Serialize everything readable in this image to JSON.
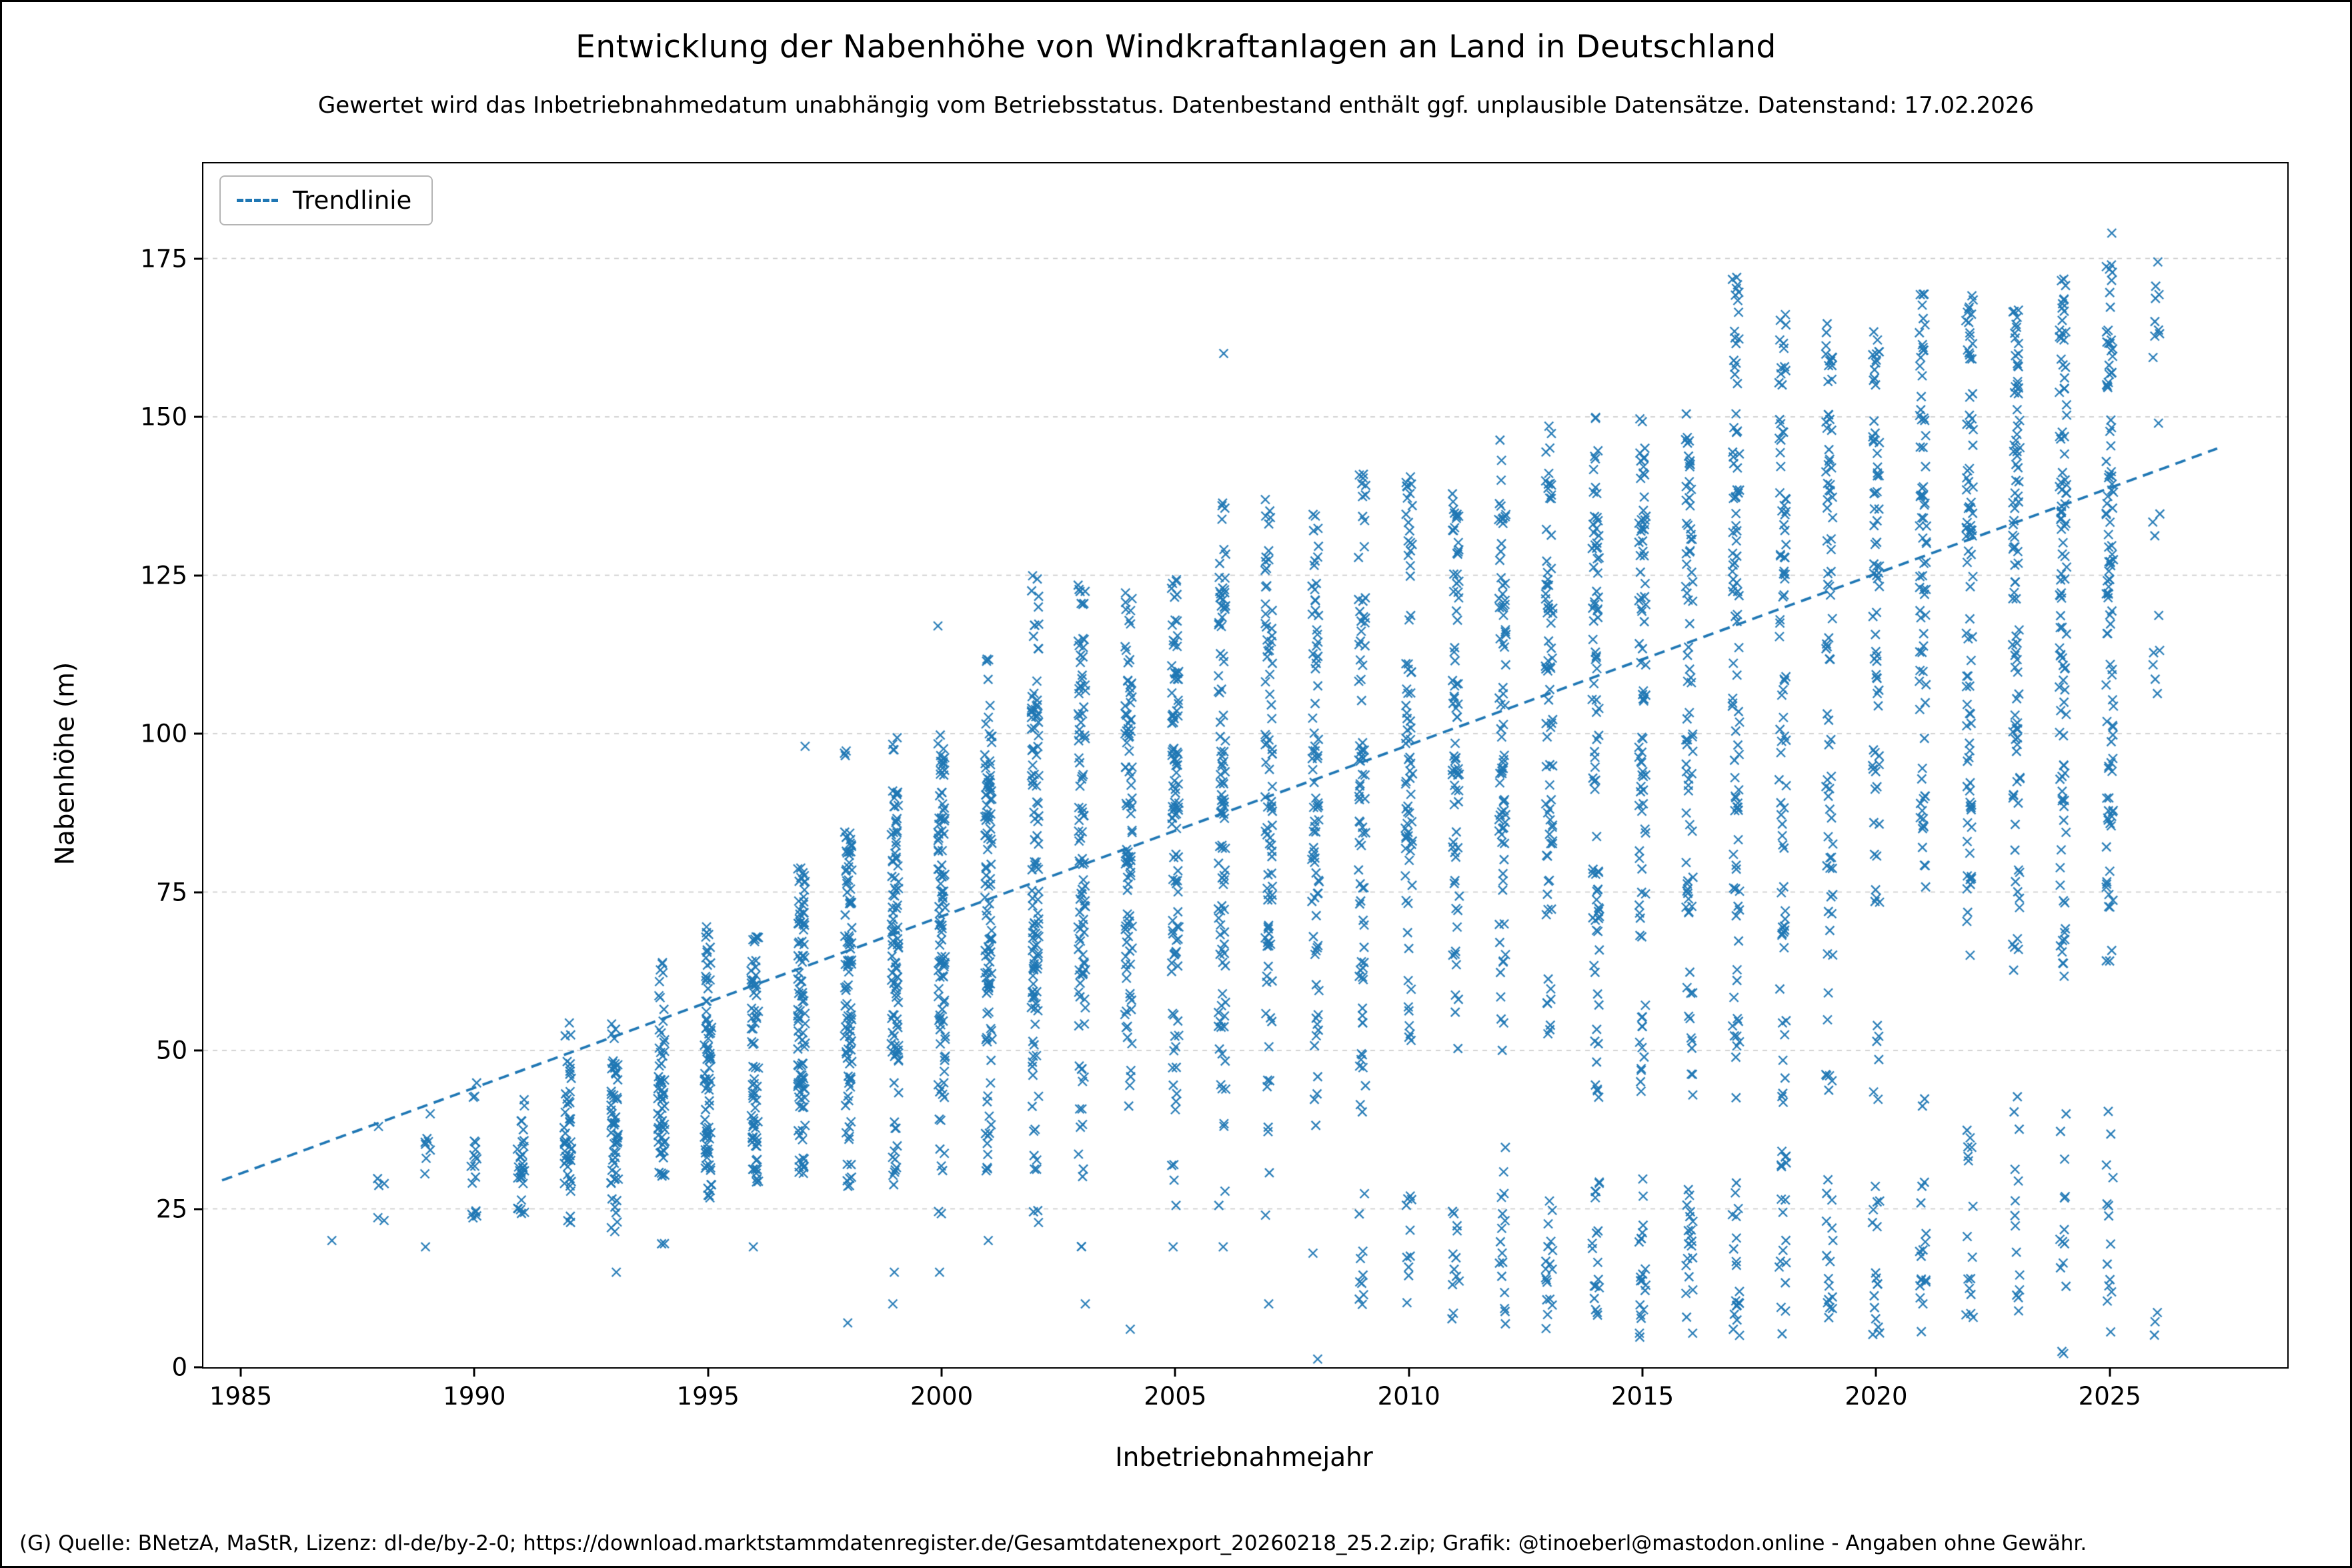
{
  "chart_data": {
    "type": "scatter",
    "title": "Entwicklung der Nabenhöhe von Windkraftanlagen an Land in Deutschland",
    "subtitle": "Gewertet wird das Inbetriebnahmedatum unabhängig vom Betriebsstatus. Datenbestand enthält ggf. unplausible Datensätze. Datenstand: 17.02.2026",
    "xlabel": "Inbetriebnahmejahr",
    "ylabel": "Nabenhöhe (m)",
    "marker": "x",
    "point_color": "#1f77b4",
    "grid": "horizontal-dashed",
    "grid_color": "#c8c8c8",
    "xlim": [
      1984.2,
      2028.8
    ],
    "ylim": [
      0,
      190
    ],
    "xticks": [
      1985,
      1990,
      1995,
      2000,
      2005,
      2010,
      2015,
      2020,
      2025
    ],
    "yticks": [
      0,
      25,
      50,
      75,
      100,
      125,
      150,
      175
    ],
    "legend": {
      "label": "Trendlinie",
      "position": "upper-left",
      "style": "dashed"
    },
    "trendline": {
      "x0": 1984.6,
      "y0": 29.5,
      "x1": 2027.3,
      "y1": 145
    },
    "bands_key": "per year: [min_height_m, max_height_m, approx_point_count]",
    "years": [
      {
        "year": 1987,
        "bands": [
          [
            20,
            20,
            1
          ]
        ]
      },
      {
        "year": 1988,
        "bands": [
          [
            23,
            24,
            2
          ],
          [
            28,
            30,
            3
          ],
          [
            38,
            38,
            1
          ]
        ]
      },
      {
        "year": 1989,
        "bands": [
          [
            19,
            19,
            1
          ],
          [
            30,
            37,
            7
          ],
          [
            40,
            40,
            1
          ]
        ]
      },
      {
        "year": 1990,
        "bands": [
          [
            23,
            25,
            5
          ],
          [
            29,
            37,
            10
          ],
          [
            41,
            46,
            3
          ]
        ]
      },
      {
        "year": 1991,
        "bands": [
          [
            24,
            28,
            6
          ],
          [
            29,
            40,
            22
          ],
          [
            41,
            44,
            2
          ]
        ]
      },
      {
        "year": 1992,
        "bands": [
          [
            22,
            24,
            3
          ],
          [
            27,
            44,
            36
          ],
          [
            45,
            55,
            9
          ]
        ]
      },
      {
        "year": 1993,
        "bands": [
          [
            15,
            15,
            1
          ],
          [
            21,
            27,
            7
          ],
          [
            28,
            50,
            48
          ],
          [
            51,
            55,
            4
          ]
        ]
      },
      {
        "year": 1994,
        "bands": [
          [
            19,
            20,
            2
          ],
          [
            29,
            46,
            42
          ],
          [
            47,
            57,
            12
          ],
          [
            58,
            66,
            7
          ]
        ]
      },
      {
        "year": 1995,
        "bands": [
          [
            26,
            30,
            7
          ],
          [
            31,
            55,
            55
          ],
          [
            56,
            70,
            18
          ]
        ]
      },
      {
        "year": 1996,
        "bands": [
          [
            19,
            19,
            1
          ],
          [
            29,
            46,
            36
          ],
          [
            47,
            68,
            36
          ]
        ]
      },
      {
        "year": 1997,
        "bands": [
          [
            30,
            40,
            14
          ],
          [
            41,
            65,
            55
          ],
          [
            66,
            80,
            30
          ],
          [
            98,
            98,
            1
          ]
        ]
      },
      {
        "year": 1998,
        "bands": [
          [
            7,
            7,
            1
          ],
          [
            28,
            40,
            12
          ],
          [
            41,
            70,
            55
          ],
          [
            71,
            85,
            30
          ],
          [
            92,
            98,
            3
          ]
        ]
      },
      {
        "year": 1999,
        "bands": [
          [
            10,
            10,
            1
          ],
          [
            15,
            15,
            1
          ],
          [
            28,
            45,
            14
          ],
          [
            46,
            78,
            60
          ],
          [
            79,
            92,
            24
          ],
          [
            97,
            100,
            4
          ]
        ]
      },
      {
        "year": 2000,
        "bands": [
          [
            15,
            15,
            1
          ],
          [
            24,
            25,
            2
          ],
          [
            30,
            50,
            16
          ],
          [
            51,
            80,
            55
          ],
          [
            81,
            100,
            35
          ],
          [
            117,
            117,
            1
          ]
        ]
      },
      {
        "year": 2001,
        "bands": [
          [
            20,
            20,
            1
          ],
          [
            30,
            50,
            14
          ],
          [
            51,
            85,
            55
          ],
          [
            86,
            100,
            32
          ],
          [
            101,
            112,
            7
          ]
        ]
      },
      {
        "year": 2002,
        "bands": [
          [
            22,
            25,
            3
          ],
          [
            30,
            55,
            16
          ],
          [
            56,
            90,
            55
          ],
          [
            91,
            114,
            34
          ],
          [
            115,
            126,
            9
          ]
        ]
      },
      {
        "year": 2003,
        "bands": [
          [
            10,
            10,
            1
          ],
          [
            19,
            20,
            2
          ],
          [
            30,
            55,
            14
          ],
          [
            56,
            90,
            48
          ],
          [
            91,
            115,
            32
          ],
          [
            116,
            125,
            7
          ]
        ]
      },
      {
        "year": 2004,
        "bands": [
          [
            6,
            6,
            1
          ],
          [
            40,
            60,
            14
          ],
          [
            61,
            95,
            48
          ],
          [
            96,
            115,
            28
          ],
          [
            116,
            125,
            7
          ]
        ]
      },
      {
        "year": 2005,
        "bands": [
          [
            19,
            19,
            1
          ],
          [
            25,
            32,
            4
          ],
          [
            40,
            64,
            16
          ],
          [
            65,
            100,
            52
          ],
          [
            101,
            120,
            28
          ],
          [
            121,
            125,
            6
          ]
        ]
      },
      {
        "year": 2006,
        "bands": [
          [
            19,
            19,
            1
          ],
          [
            25,
            45,
            7
          ],
          [
            46,
            64,
            14
          ],
          [
            65,
            100,
            46
          ],
          [
            101,
            125,
            28
          ],
          [
            126,
            138,
            7
          ],
          [
            160,
            160,
            1
          ]
        ]
      },
      {
        "year": 2007,
        "bands": [
          [
            10,
            10,
            1
          ],
          [
            24,
            24,
            1
          ],
          [
            30,
            64,
            14
          ],
          [
            65,
            105,
            46
          ],
          [
            106,
            130,
            25
          ],
          [
            131,
            137,
            5
          ]
        ]
      },
      {
        "year": 2008,
        "bands": [
          [
            1,
            2,
            1
          ],
          [
            18,
            18,
            1
          ],
          [
            30,
            64,
            12
          ],
          [
            65,
            105,
            42
          ],
          [
            106,
            130,
            22
          ],
          [
            131,
            135,
            4
          ]
        ]
      },
      {
        "year": 2009,
        "bands": [
          [
            7,
            30,
            10
          ],
          [
            40,
            60,
            12
          ],
          [
            61,
            100,
            40
          ],
          [
            101,
            141,
            28
          ]
        ]
      },
      {
        "year": 2010,
        "bands": [
          [
            7,
            30,
            10
          ],
          [
            50,
            78,
            14
          ],
          [
            79,
            105,
            34
          ],
          [
            106,
            141,
            28
          ]
        ]
      },
      {
        "year": 2011,
        "bands": [
          [
            7,
            25,
            12
          ],
          [
            50,
            78,
            14
          ],
          [
            79,
            110,
            34
          ],
          [
            111,
            139,
            28
          ]
        ]
      },
      {
        "year": 2012,
        "bands": [
          [
            5,
            38,
            16
          ],
          [
            50,
            78,
            14
          ],
          [
            79,
            112,
            34
          ],
          [
            113,
            148,
            32
          ]
        ]
      },
      {
        "year": 2013,
        "bands": [
          [
            5,
            30,
            18
          ],
          [
            50,
            78,
            14
          ],
          [
            79,
            115,
            34
          ],
          [
            116,
            149,
            32
          ]
        ]
      },
      {
        "year": 2014,
        "bands": [
          [
            5,
            30,
            18
          ],
          [
            41,
            64,
            12
          ],
          [
            65,
            115,
            40
          ],
          [
            116,
            150,
            34
          ]
        ]
      },
      {
        "year": 2015,
        "bands": [
          [
            4,
            30,
            20
          ],
          [
            41,
            64,
            12
          ],
          [
            65,
            118,
            40
          ],
          [
            119,
            150,
            34
          ]
        ]
      },
      {
        "year": 2016,
        "bands": [
          [
            4,
            30,
            20
          ],
          [
            41,
            64,
            12
          ],
          [
            65,
            118,
            36
          ],
          [
            119,
            151,
            32
          ]
        ]
      },
      {
        "year": 2017,
        "bands": [
          [
            4,
            30,
            20
          ],
          [
            41,
            64,
            12
          ],
          [
            65,
            120,
            36
          ],
          [
            121,
            151,
            32
          ],
          [
            155,
            175,
            17
          ]
        ]
      },
      {
        "year": 2018,
        "bands": [
          [
            5,
            36,
            18
          ],
          [
            41,
            64,
            9
          ],
          [
            65,
            120,
            34
          ],
          [
            121,
            151,
            28
          ],
          [
            155,
            167,
            12
          ]
        ]
      },
      {
        "year": 2019,
        "bands": [
          [
            5,
            30,
            16
          ],
          [
            41,
            60,
            7
          ],
          [
            65,
            120,
            32
          ],
          [
            121,
            151,
            28
          ],
          [
            155,
            166,
            12
          ]
        ]
      },
      {
        "year": 2020,
        "bands": [
          [
            5,
            30,
            16
          ],
          [
            41,
            60,
            6
          ],
          [
            73,
            120,
            30
          ],
          [
            121,
            151,
            28
          ],
          [
            155,
            164,
            12
          ]
        ]
      },
      {
        "year": 2021,
        "bands": [
          [
            5,
            32,
            16
          ],
          [
            41,
            43,
            2
          ],
          [
            73,
            120,
            30
          ],
          [
            121,
            152,
            32
          ],
          [
            153,
            170,
            16
          ]
        ]
      },
      {
        "year": 2022,
        "bands": [
          [
            5,
            43,
            16
          ],
          [
            60,
            80,
            9
          ],
          [
            81,
            120,
            30
          ],
          [
            121,
            152,
            32
          ],
          [
            153,
            170,
            18
          ]
        ]
      },
      {
        "year": 2023,
        "bands": [
          [
            5,
            43,
            14
          ],
          [
            60,
            80,
            11
          ],
          [
            81,
            120,
            30
          ],
          [
            121,
            152,
            34
          ],
          [
            153,
            170,
            20
          ]
        ]
      },
      {
        "year": 2024,
        "bands": [
          [
            2,
            40,
            14
          ],
          [
            60,
            80,
            13
          ],
          [
            81,
            120,
            32
          ],
          [
            121,
            152,
            36
          ],
          [
            153,
            172,
            22
          ]
        ]
      },
      {
        "year": 2025,
        "bands": [
          [
            2,
            43,
            14
          ],
          [
            64,
            80,
            11
          ],
          [
            81,
            120,
            32
          ],
          [
            121,
            152,
            36
          ],
          [
            153,
            175,
            24
          ],
          [
            179,
            179,
            1
          ]
        ]
      },
      {
        "year": 2026,
        "bands": [
          [
            4,
            11,
            3
          ],
          [
            105,
            125,
            6
          ],
          [
            130,
            136,
            3
          ],
          [
            149,
            149,
            1
          ],
          [
            158,
            175,
            9
          ]
        ]
      }
    ]
  },
  "footer": {
    "credit": "(G) Quelle: BNetzA, MaStR, Lizenz: dl-de/by-2-0; https://download.marktstammdatenregister.de/Gesamtdatenexport_20260218_25.2.zip; Grafik: @tinoeberl@mastodon.online - Angaben ohne Gewähr."
  }
}
